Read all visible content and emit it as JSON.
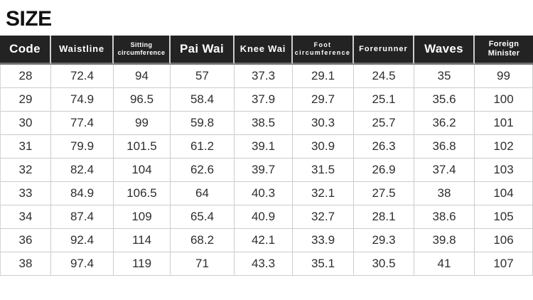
{
  "page_title": "SIZE",
  "display": {
    "headers": [
      "Code",
      "Waistline",
      "Sitting\ncircumference",
      "Pai Wai",
      "Knee Wai",
      "Foot\ncircumference",
      "Forerunner",
      "Waves",
      "Foreign\nMinister"
    ]
  },
  "chart_data": {
    "type": "table",
    "title": "SIZE",
    "columns": [
      "Code",
      "Waistline",
      "Sitting circumference",
      "Pai Wai",
      "Knee Wai",
      "Foot circumference",
      "Forerunner",
      "Waves",
      "Foreign Minister"
    ],
    "rows": [
      [
        28,
        72.4,
        94,
        57,
        37.3,
        29.1,
        24.5,
        35,
        99
      ],
      [
        29,
        74.9,
        96.5,
        58.4,
        37.9,
        29.7,
        25.1,
        35.6,
        100
      ],
      [
        30,
        77.4,
        99,
        59.8,
        38.5,
        30.3,
        25.7,
        36.2,
        101
      ],
      [
        31,
        79.9,
        101.5,
        61.2,
        39.1,
        30.9,
        26.3,
        36.8,
        102
      ],
      [
        32,
        82.4,
        104,
        62.6,
        39.7,
        31.5,
        26.9,
        37.4,
        103
      ],
      [
        33,
        84.9,
        106.5,
        64,
        40.3,
        32.1,
        27.5,
        38,
        104
      ],
      [
        34,
        87.4,
        109,
        65.4,
        40.9,
        32.7,
        28.1,
        38.6,
        105
      ],
      [
        36,
        92.4,
        114,
        68.2,
        42.1,
        33.9,
        29.3,
        39.8,
        106
      ],
      [
        38,
        97.4,
        119,
        71,
        43.3,
        35.1,
        30.5,
        41,
        107
      ]
    ]
  },
  "colors": {
    "header_bg": "#232323",
    "header_text": "#ffffff",
    "header_gap": "#cfcfcf",
    "header_bottom_line": "#6f6f6f",
    "grid_line": "#cccccc",
    "cell_text": "#2e2e2e",
    "title_text": "#111111",
    "background": "#ffffff"
  }
}
